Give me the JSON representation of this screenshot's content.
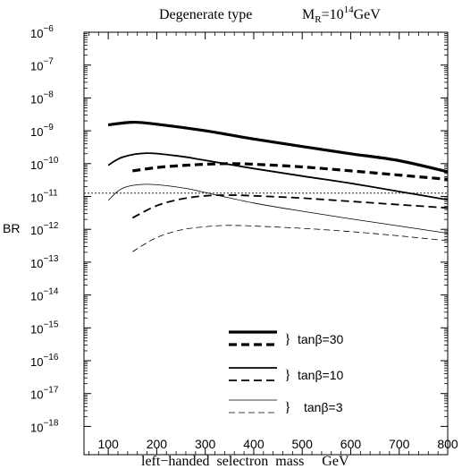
{
  "chart_data": {
    "type": "line",
    "title": "Degenerate type",
    "subtitle_main": "M",
    "subtitle_sub": "R",
    "subtitle_eq": "=10",
    "subtitle_sup": "14",
    "subtitle_unit": "GeV",
    "xlabel": "left−handed  selectron  mass     GeV",
    "ylabel": "BR",
    "xlim": [
      50,
      800
    ],
    "ylim_log10": [
      -18,
      -6
    ],
    "yscale": "log",
    "x_ticks": [
      100,
      200,
      300,
      400,
      500,
      600,
      700,
      800
    ],
    "x_tick_labels": [
      "100",
      "200",
      "300",
      "400",
      "500",
      "600",
      "700",
      "800"
    ],
    "y_tick_exponents": [
      -6,
      -7,
      -8,
      -9,
      -10,
      -11,
      -12,
      -13,
      -14,
      -15,
      -16,
      -17,
      -18
    ],
    "y_tick_base": "10",
    "horizontal_reference_log10": -10.9,
    "series": [
      {
        "key": "s1",
        "style": "thick-solid",
        "x": [
          100,
          150,
          200,
          300,
          400,
          500,
          600,
          700,
          800
        ],
        "log10_y": [
          -8.82,
          -8.74,
          -8.8,
          -9.0,
          -9.25,
          -9.48,
          -9.7,
          -9.91,
          -10.25
        ]
      },
      {
        "key": "s2",
        "style": "thick-dashed",
        "x": [
          150,
          200,
          250,
          300,
          350,
          400,
          500,
          600,
          700,
          800
        ],
        "log10_y": [
          -10.22,
          -10.12,
          -10.06,
          -10.02,
          -10.0,
          -10.02,
          -10.1,
          -10.22,
          -10.35,
          -10.48
        ]
      },
      {
        "key": "s3",
        "style": "medium-solid",
        "x": [
          100,
          130,
          180,
          250,
          300,
          400,
          500,
          600,
          700,
          800
        ],
        "log10_y": [
          -10.05,
          -9.8,
          -9.68,
          -9.78,
          -9.9,
          -10.15,
          -10.38,
          -10.6,
          -10.85,
          -11.1
        ]
      },
      {
        "key": "s4",
        "style": "medium-dashed",
        "x": [
          150,
          200,
          250,
          300,
          350,
          400,
          500,
          600,
          700,
          800
        ],
        "log10_y": [
          -11.65,
          -11.28,
          -11.08,
          -10.98,
          -10.96,
          -10.98,
          -11.05,
          -11.15,
          -11.25,
          -11.35
        ]
      },
      {
        "key": "s5",
        "style": "thin-solid",
        "x": [
          100,
          130,
          180,
          250,
          300,
          400,
          500,
          600,
          700,
          800
        ],
        "log10_y": [
          -11.12,
          -10.75,
          -10.63,
          -10.73,
          -10.88,
          -11.2,
          -11.45,
          -11.68,
          -11.9,
          -12.12
        ]
      },
      {
        "key": "s6",
        "style": "thin-dashed",
        "x": [
          150,
          200,
          250,
          300,
          350,
          400,
          500,
          600,
          700,
          800
        ],
        "log10_y": [
          -12.68,
          -12.25,
          -12.02,
          -11.92,
          -11.88,
          -11.9,
          -11.97,
          -12.07,
          -12.2,
          -12.35
        ]
      }
    ],
    "legend_groups": [
      {
        "brace": "}",
        "label": "tanβ=30",
        "solid": "thick-solid",
        "dashed": "thick-dashed"
      },
      {
        "brace": "}",
        "label": "tanβ=10",
        "solid": "medium-solid",
        "dashed": "medium-dashed"
      },
      {
        "brace": "}",
        "label": "tanβ=3",
        "solid": "thin-solid",
        "dashed": "thin-dashed"
      }
    ],
    "legend_placement": "bottom-right",
    "grid": false
  }
}
